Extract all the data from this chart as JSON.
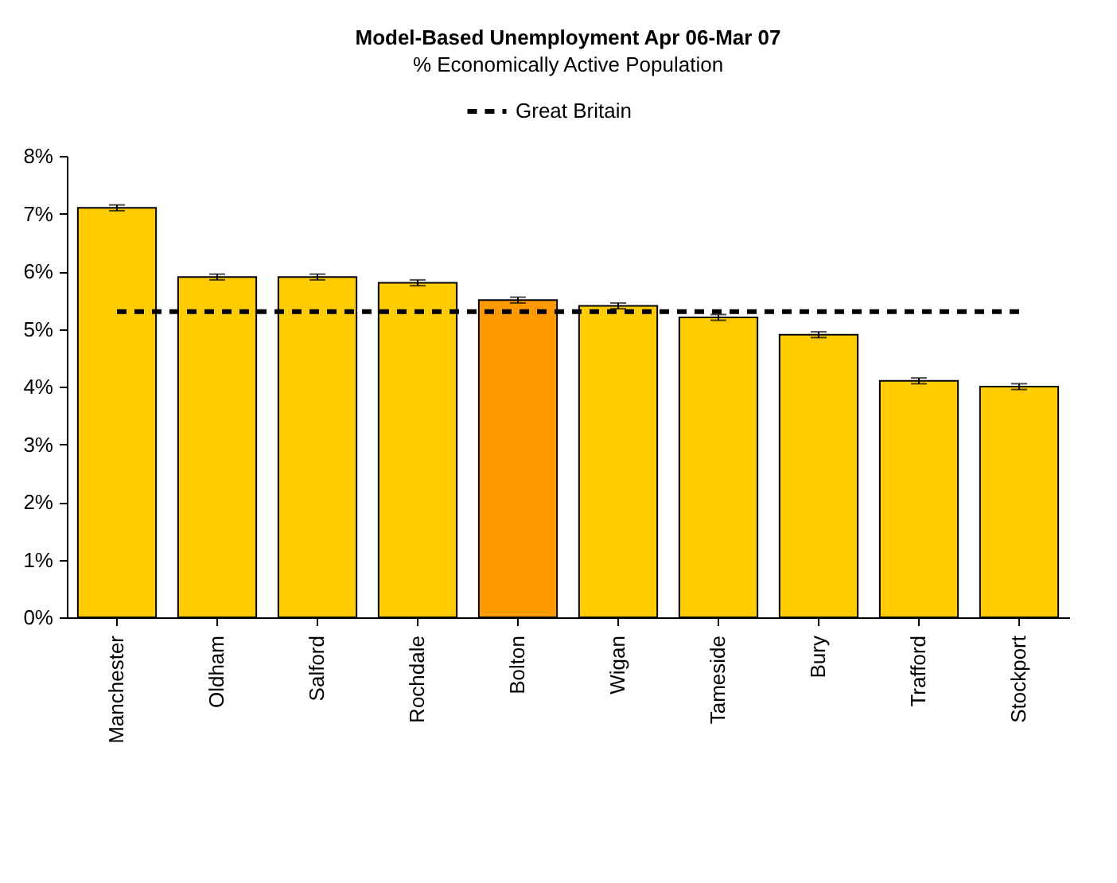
{
  "chart_data": {
    "type": "bar",
    "title": "Model-Based Unemployment Apr 06-Mar 07",
    "subtitle": "%  Economically Active Population",
    "categories": [
      "Manchester",
      "Oldham",
      "Salford",
      "Rochdale",
      "Bolton",
      "Wigan",
      "Tameside",
      "Bury",
      "Trafford",
      "Stockport"
    ],
    "series": [
      {
        "values": [
          7.1,
          5.9,
          5.9,
          5.8,
          5.5,
          5.4,
          5.2,
          4.9,
          4.1,
          4.0
        ],
        "colors": [
          "#ffcc00",
          "#ffcc00",
          "#ffcc00",
          "#ffcc00",
          "#ff9900",
          "#ffcc00",
          "#ffcc00",
          "#ffcc00",
          "#ffcc00",
          "#ffcc00"
        ],
        "errors": [
          0.05,
          0.05,
          0.05,
          0.05,
          0.05,
          0.05,
          0.05,
          0.05,
          0.05,
          0.05
        ]
      },
      {
        "type": "line",
        "name": "Great Britain",
        "color": "#000000",
        "line_style": "dashed",
        "marker": "none",
        "values": [
          5.3,
          5.3,
          5.3,
          5.3,
          5.3,
          5.3,
          5.3,
          5.3,
          5.3,
          5.3
        ]
      }
    ],
    "ylim": [
      0,
      8
    ],
    "yticks": [
      {
        "value": 0,
        "label": "0%"
      },
      {
        "value": 1,
        "label": "1%"
      },
      {
        "value": 2,
        "label": "2%"
      },
      {
        "value": 3,
        "label": "3%"
      },
      {
        "value": 4,
        "label": "4%"
      },
      {
        "value": 5,
        "label": "5%"
      },
      {
        "value": 6,
        "label": "6%"
      },
      {
        "value": 7,
        "label": "7%"
      },
      {
        "value": 8,
        "label": "8%"
      }
    ],
    "grid": false,
    "legend": "top"
  }
}
